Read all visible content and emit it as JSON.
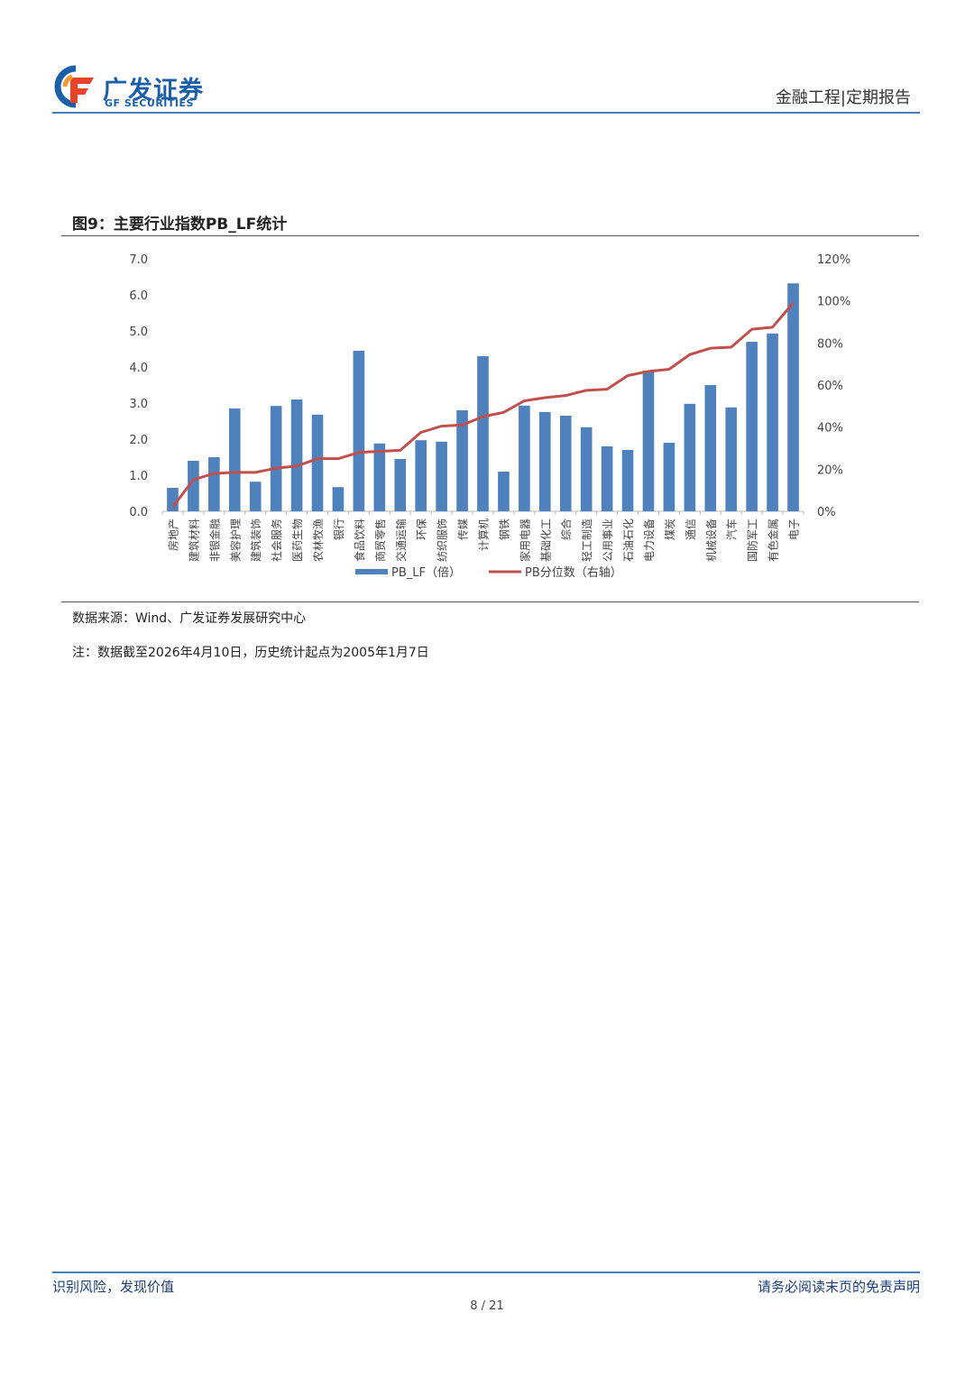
{
  "header": {
    "logo_cn": "广发证券",
    "logo_en": "GF SECURITIES",
    "doc_type": "金融工程|定期报告",
    "brand_color": "#1b5fa8",
    "accent_color": "#e8442a"
  },
  "figure": {
    "title": "图9：主要行业指数PB_LF统计",
    "source": "数据来源：Wind、广发证券发展研究中心",
    "note": "注：数据截至2026年4月10日，历史统计起点为2005年1月7日"
  },
  "chart_data": {
    "type": "bar",
    "categories": [
      "房地产",
      "建筑材料",
      "非银金融",
      "美容护理",
      "建筑装饰",
      "社会服务",
      "医药生物",
      "农林牧渔",
      "银行",
      "食品饮料",
      "商贸零售",
      "交通运输",
      "环保",
      "纺织服饰",
      "传媒",
      "计算机",
      "钢铁",
      "家用电器",
      "基础化工",
      "综合",
      "轻工制造",
      "公用事业",
      "石油石化",
      "电力设备",
      "煤炭",
      "通信",
      "机械设备",
      "汽车",
      "国防军工",
      "有色金属",
      "电子"
    ],
    "series": [
      {
        "name": "PB_LF（倍）",
        "type": "bar",
        "axis": "left",
        "color": "#4f81bd",
        "values": [
          0.65,
          1.4,
          1.5,
          2.85,
          0.82,
          2.92,
          3.1,
          2.68,
          0.67,
          4.45,
          1.88,
          1.45,
          1.97,
          1.93,
          2.8,
          4.3,
          1.1,
          2.93,
          2.75,
          2.65,
          2.33,
          1.8,
          1.7,
          3.9,
          1.9,
          2.98,
          3.5,
          2.88,
          4.7,
          4.93,
          6.32
        ]
      },
      {
        "name": "PB分位数（右轴）",
        "type": "line",
        "axis": "right",
        "color": "#c0504d",
        "values": [
          2,
          15,
          18,
          18.5,
          18.5,
          20.5,
          21.5,
          25,
          25,
          28,
          28.5,
          29,
          37.5,
          40.5,
          41,
          45,
          47,
          52.5,
          54,
          55,
          57.5,
          58,
          64.5,
          66.5,
          67.5,
          74.5,
          77.5,
          78,
          86.5,
          87.5,
          99
        ]
      }
    ],
    "y_left": {
      "min": 0,
      "max": 7,
      "ticks": [
        "0.0",
        "1.0",
        "2.0",
        "3.0",
        "4.0",
        "5.0",
        "6.0",
        "7.0"
      ]
    },
    "y_right": {
      "min": 0,
      "max": 120,
      "ticks": [
        "0%",
        "20%",
        "40%",
        "60%",
        "80%",
        "100%",
        "120%"
      ]
    },
    "legend_position": "bottom",
    "grid": false
  },
  "footer": {
    "left": "识别风险，发现价值",
    "right": "请务必阅读末页的免责声明",
    "page": "8 / 21"
  }
}
